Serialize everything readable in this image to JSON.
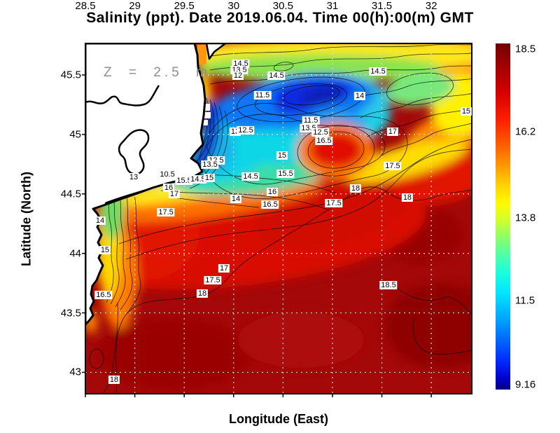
{
  "title": "Salinity (ppt). Date 2019.06.04. Time 00(h):00(m) GMT",
  "annotation": "Z = 2.5 m",
  "axes": {
    "x": {
      "label": "Longitude (East)",
      "ticks": [
        "28.5",
        "29",
        "29.5",
        "30",
        "30.5",
        "31",
        "31.5",
        "32"
      ],
      "tick_values": [
        28.5,
        29,
        29.5,
        30,
        30.5,
        31,
        31.5,
        32
      ]
    },
    "y": {
      "label": "Latitude (North)",
      "ticks": [
        "45.5",
        "45",
        "44.5",
        "44",
        "43.5",
        "43"
      ],
      "tick_values": [
        45.5,
        45,
        44.5,
        44,
        43.5,
        43
      ]
    }
  },
  "colorbar": {
    "tick_labels": [
      "18.5",
      "16.2",
      "13.8",
      "11.5",
      "9.16"
    ],
    "tick_values": [
      18.5,
      16.2,
      13.8,
      11.5,
      9.16
    ],
    "min": 9.16,
    "max": 18.5,
    "colormap": "jet"
  },
  "chart_data": {
    "type": "heatmap",
    "title": "Salinity (ppt). Date 2019.06.04. Time 00(h):00(m) GMT",
    "variable": "Salinity (ppt)",
    "date": "2019.06.04",
    "time": "00(h):00(m) GMT",
    "depth_annotation": "Z = 2.5 m",
    "xlabel": "Longitude (East)",
    "ylabel": "Latitude (North)",
    "xlim": [
      28.5,
      32.41
    ],
    "ylim": [
      42.82,
      45.765
    ],
    "grid": true,
    "colorbar_range": [
      9.16,
      18.5
    ],
    "colorbar_ticks": [
      9.16,
      11.5,
      13.8,
      16.2,
      18.5
    ],
    "colormap": "jet",
    "region": "northwestern Black Sea with coastline and low-salinity river plume",
    "contour_labels": [
      {
        "value": "14.5",
        "lon": 30.073,
        "lat": 45.594
      },
      {
        "value": "13.5",
        "lon": 30.058,
        "lat": 45.541
      },
      {
        "value": "12",
        "lon": 30.044,
        "lat": 45.494
      },
      {
        "value": "14.5",
        "lon": 30.434,
        "lat": 45.494
      },
      {
        "value": "14.5",
        "lon": 31.461,
        "lat": 45.529
      },
      {
        "value": "11.5",
        "lon": 30.292,
        "lat": 45.329
      },
      {
        "value": "14",
        "lon": 31.277,
        "lat": 45.323
      },
      {
        "value": "15",
        "lon": 32.353,
        "lat": 45.194
      },
      {
        "value": "17",
        "lon": 31.609,
        "lat": 45.023
      },
      {
        "value": "13",
        "lon": 30.016,
        "lat": 45.023
      },
      {
        "value": "12.5",
        "lon": 30.122,
        "lat": 45.035
      },
      {
        "value": "11.5",
        "lon": 30.781,
        "lat": 45.117
      },
      {
        "value": "13.5",
        "lon": 30.759,
        "lat": 45.052
      },
      {
        "value": "12.5",
        "lon": 30.88,
        "lat": 45.017
      },
      {
        "value": "16.5",
        "lon": 30.915,
        "lat": 44.946
      },
      {
        "value": "17.5",
        "lon": 31.609,
        "lat": 44.734
      },
      {
        "value": "12.5",
        "lon": 29.824,
        "lat": 44.781
      },
      {
        "value": "13.5",
        "lon": 29.761,
        "lat": 44.746
      },
      {
        "value": "15",
        "lon": 30.49,
        "lat": 44.823
      },
      {
        "value": "13",
        "lon": 28.989,
        "lat": 44.64
      },
      {
        "value": "10.5",
        "lon": 29.329,
        "lat": 44.664
      },
      {
        "value": "15.5",
        "lon": 29.499,
        "lat": 44.611
      },
      {
        "value": "14.5",
        "lon": 29.64,
        "lat": 44.622
      },
      {
        "value": "15",
        "lon": 29.754,
        "lat": 44.634
      },
      {
        "value": "14.5",
        "lon": 30.172,
        "lat": 44.646
      },
      {
        "value": "16",
        "lon": 29.343,
        "lat": 44.552
      },
      {
        "value": "17",
        "lon": 29.4,
        "lat": 44.499
      },
      {
        "value": "14",
        "lon": 30.023,
        "lat": 44.457
      },
      {
        "value": "16",
        "lon": 30.391,
        "lat": 44.516
      },
      {
        "value": "16.5",
        "lon": 30.37,
        "lat": 44.41
      },
      {
        "value": "15.5",
        "lon": 30.526,
        "lat": 44.67
      },
      {
        "value": "17.5",
        "lon": 29.315,
        "lat": 44.345
      },
      {
        "value": "14",
        "lon": 28.649,
        "lat": 44.275
      },
      {
        "value": "15",
        "lon": 28.698,
        "lat": 44.027
      },
      {
        "value": "18",
        "lon": 31.234,
        "lat": 44.546
      },
      {
        "value": "18",
        "lon": 31.758,
        "lat": 44.469
      },
      {
        "value": "17.5",
        "lon": 31.015,
        "lat": 44.422
      },
      {
        "value": "17",
        "lon": 29.903,
        "lat": 43.874
      },
      {
        "value": "17.5",
        "lon": 29.789,
        "lat": 43.774
      },
      {
        "value": "18",
        "lon": 29.683,
        "lat": 43.662
      },
      {
        "value": "16.5",
        "lon": 28.684,
        "lat": 43.65
      },
      {
        "value": "18.5",
        "lon": 31.567,
        "lat": 43.733
      },
      {
        "value": "18",
        "lon": 28.79,
        "lat": 42.938
      }
    ]
  }
}
